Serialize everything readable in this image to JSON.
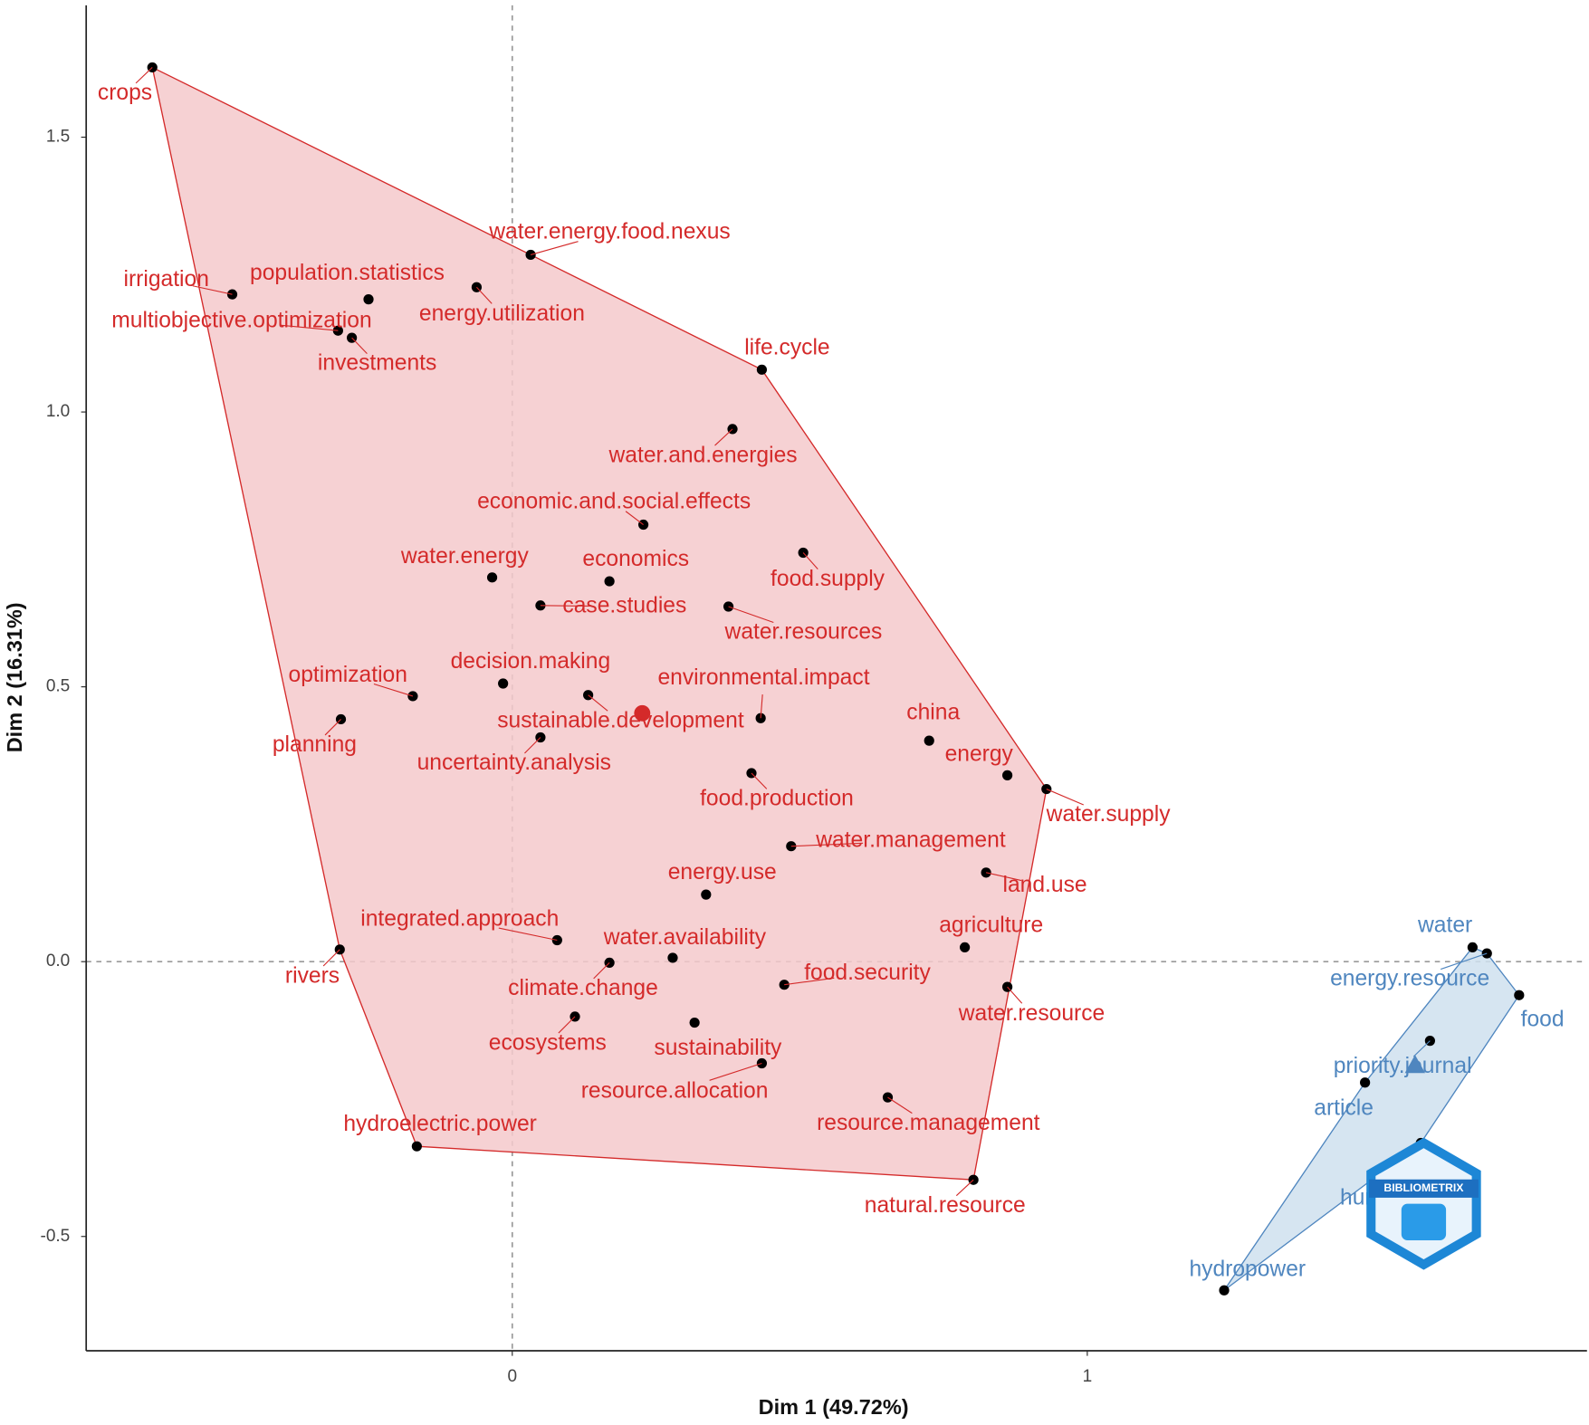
{
  "chart_data": {
    "type": "scatter",
    "xlabel": "Dim 1 (49.72%)",
    "ylabel": "Dim 2 (16.31%)",
    "xlim": [
      -0.741,
      1.869
    ],
    "ylim": [
      -0.708,
      1.74
    ],
    "xticks": [
      0,
      1
    ],
    "yticks": [
      -0.5,
      {
        "value": 0,
        "label": "0.0"
      },
      0.5,
      {
        "value": 1,
        "label": "1.0"
      },
      1.5
    ],
    "reference_lines": true,
    "watermark": "BIBLIOMETRIX",
    "series": [
      {
        "color": "#d42a2a",
        "hull_fill": "#f5c9cb",
        "centroid_shape": "circle",
        "centroid_x": 0.226,
        "centroid_y": 0.452,
        "labels": [
          "crops",
          "irrigation",
          "population.statistics",
          "multiobjective.optimization",
          "investments",
          "energy.utilization",
          "water.energy.food.nexus",
          "life.cycle",
          "water.and.energies",
          "economic.and.social.effects",
          "food.supply",
          "water.energy",
          "economics",
          "case.studies",
          "water.resources",
          "optimization",
          "decision.making",
          "sustainable.development",
          "environmental.impact",
          "uncertainty.analysis",
          "planning",
          "china",
          "energy",
          "water.supply",
          "food.production",
          "water.management",
          "land.use",
          "energy.use",
          "integrated.approach",
          "water.availability",
          "climate.change",
          "agriculture",
          "rivers",
          "food.security",
          "water.resource",
          "ecosystems",
          "sustainability",
          "resource.allocation",
          "resource.management",
          "hydroelectric.power",
          "natural.resource"
        ],
        "x": [
          -0.626,
          -0.487,
          -0.25,
          -0.303,
          -0.279,
          -0.062,
          0.032,
          0.434,
          0.383,
          0.228,
          0.506,
          -0.035,
          0.169,
          0.049,
          0.376,
          -0.173,
          -0.016,
          0.132,
          0.432,
          0.049,
          -0.298,
          0.725,
          0.861,
          0.929,
          0.416,
          0.485,
          0.824,
          0.337,
          0.078,
          0.279,
          0.169,
          0.787,
          -0.3,
          0.473,
          0.861,
          0.109,
          0.317,
          0.434,
          0.653,
          -0.166,
          0.802
        ],
        "y": [
          1.627,
          1.214,
          1.205,
          1.148,
          1.135,
          1.227,
          1.286,
          1.077,
          0.969,
          0.795,
          0.744,
          0.699,
          0.692,
          0.648,
          0.646,
          0.483,
          0.506,
          0.485,
          0.443,
          0.408,
          0.441,
          0.402,
          0.339,
          0.314,
          0.343,
          0.21,
          0.162,
          0.122,
          0.039,
          0.007,
          -0.002,
          0.026,
          0.022,
          -0.042,
          -0.046,
          -0.1,
          -0.111,
          -0.185,
          -0.247,
          -0.336,
          -0.397
        ]
      },
      {
        "color": "#4f86bf",
        "hull_fill": "#cfe0ef",
        "centroid_shape": "triangle",
        "centroid_x": 1.57,
        "centroid_y": -0.188,
        "labels": [
          "water",
          "energy.resource",
          "food",
          "priority.journal",
          "article",
          "human",
          "hydropower"
        ],
        "x": [
          1.67,
          1.695,
          1.751,
          1.596,
          1.483,
          1.58,
          1.238
        ],
        "y": [
          0.026,
          0.015,
          -0.061,
          -0.144,
          -0.22,
          -0.33,
          -0.598
        ]
      }
    ]
  }
}
